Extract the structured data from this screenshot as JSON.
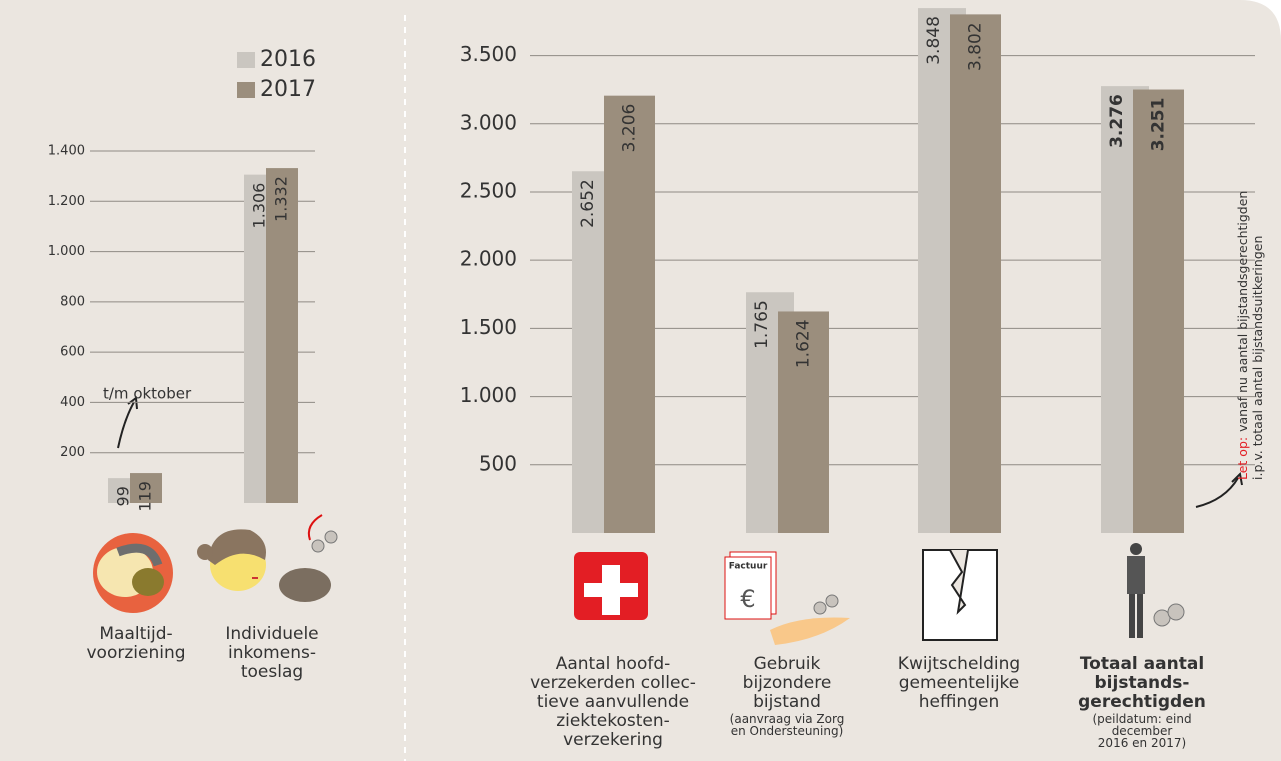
{
  "chart_data": [
    {
      "type": "bar",
      "categories": [
        "Maaltijd-\nvoorziening",
        "Individuele\ninkomens-\ntoeslag"
      ],
      "series": [
        {
          "name": "2016",
          "color": "#cac6c0",
          "values": [
            99,
            1306
          ],
          "value_labels": [
            "99",
            "1.306"
          ]
        },
        {
          "name": "2017",
          "color": "#9b8e7d",
          "values": [
            119,
            1332
          ],
          "value_labels": [
            "119",
            "1.332"
          ]
        }
      ],
      "ylim": [
        0,
        1400
      ],
      "yticks": [
        200,
        400,
        600,
        800,
        {
          "value": 1000,
          "label": "1.000"
        },
        {
          "value": 1200,
          "label": "1.200"
        },
        {
          "value": 1400,
          "label": "1.400"
        }
      ],
      "grid": true,
      "annotation": "t/m oktober"
    },
    {
      "type": "bar",
      "categories": [
        "Aantal hoofd-\nverzekerden collec-\ntieve aanvullende\nziektekosten-\nverzekering",
        "Gebruik\nbijzondere\nbijstand",
        "Kwijtschelding\ngemeentelijke\nheffingen",
        "Totaal aantal\nbijstands-\ngerechtigden"
      ],
      "category_notes": [
        null,
        "(aanvraag via Zorg\nen Ondersteuning)",
        null,
        "(peildatum: eind december\n2016 en 2017)"
      ],
      "series": [
        {
          "color": "#cac6c0",
          "values": [
            2652,
            1765,
            3848,
            3276
          ],
          "value_labels": [
            "2.652",
            "1.765",
            "3.848",
            "3.276"
          ]
        },
        {
          "color": "#9b8e7d",
          "values": [
            3206,
            1624,
            3802,
            3251
          ],
          "value_labels": [
            "3.206",
            "1.624",
            "3.802",
            "3.251"
          ]
        }
      ],
      "ylim": [
        0,
        3900
      ],
      "yticks": [
        500,
        {
          "value": 1000,
          "label": "1.000"
        },
        {
          "value": 1500,
          "label": "1.500"
        },
        {
          "value": 2000,
          "label": "2.000"
        },
        {
          "value": 2500,
          "label": "2.500"
        },
        {
          "value": 3000,
          "label": "3.000"
        },
        {
          "value": 3500,
          "label": "3.500"
        }
      ],
      "grid": true,
      "note": {
        "prefix": "Let op:",
        "lines": [
          "vanaf nu aantal bijstandsgerechtigden",
          "i.p.v. totaal aantal bijstandsuitkeringen"
        ]
      }
    }
  ]
}
